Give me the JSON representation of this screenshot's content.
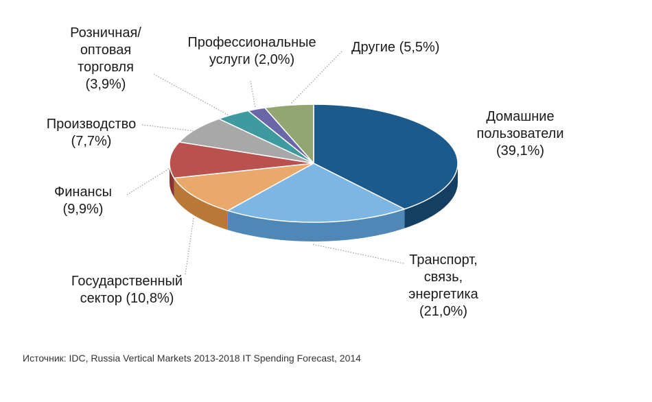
{
  "chart_data": {
    "type": "pie",
    "slices": [
      {
        "key": "home",
        "lines": [
          "Домашние",
          "пользователи",
          "(39,1%)"
        ],
        "value": 39.1,
        "top": "#1d5a8c",
        "side": "#153f62"
      },
      {
        "key": "transport",
        "lines": [
          "Транспорт,",
          "связь,",
          "энергетика",
          "(21,0%)"
        ],
        "value": 21.0,
        "top": "#7db6e2",
        "side": "#4f88b6"
      },
      {
        "key": "gov",
        "lines": [
          "Государственный",
          "сектор (10,8%)"
        ],
        "value": 10.8,
        "top": "#e9a86c",
        "side": "#b87838"
      },
      {
        "key": "finance",
        "lines": [
          "Финансы",
          "(9,9%)"
        ],
        "value": 9.9,
        "top": "#b9524f",
        "side": "#8a3532"
      },
      {
        "key": "manuf",
        "lines": [
          "Производство",
          "(7,7%)"
        ],
        "value": 7.7,
        "top": "#a8a8a8",
        "side": "#7e7e7e"
      },
      {
        "key": "retail",
        "lines": [
          "Розничная/",
          "оптовая",
          "торговля",
          "(3,9%)"
        ],
        "value": 3.9,
        "top": "#3f9aa0",
        "side": "#2b7378"
      },
      {
        "key": "prof",
        "lines": [
          "Профессиональные",
          "услуги (2,0%)"
        ],
        "value": 2.0,
        "top": "#6b66a8",
        "side": "#4a4680"
      },
      {
        "key": "other",
        "lines": [
          "Другие (5,5%)"
        ],
        "value": 5.5,
        "top": "#93a672",
        "side": "#6d7d52"
      }
    ]
  },
  "source": "Источник: IDC, Russia Vertical Markets 2013-2018 IT Spending Forecast, 2014"
}
